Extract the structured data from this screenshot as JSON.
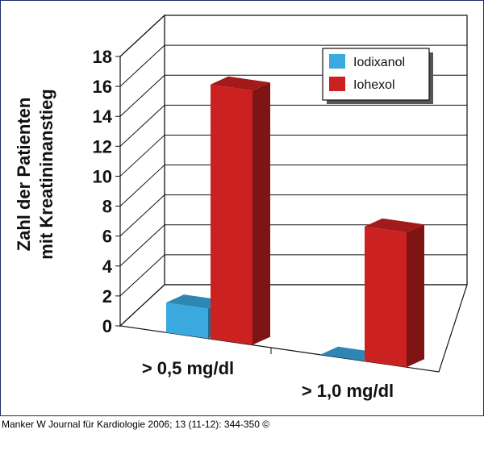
{
  "chart_data": {
    "type": "bar",
    "style": "3d",
    "ylabel_lines": [
      "Zahl der Patienten",
      "mit Kreatininanstieg"
    ],
    "categories": [
      "> 0,5 mg/dl",
      "> 1,0 mg/dl"
    ],
    "series": [
      {
        "name": "Iodixanol",
        "values": [
          2,
          0
        ],
        "color": "#3aa9de"
      },
      {
        "name": "Iohexol",
        "values": [
          17,
          9
        ],
        "color": "#cc2121"
      }
    ],
    "ylim": [
      0,
      18
    ],
    "yticks": [
      0,
      2,
      4,
      6,
      8,
      10,
      12,
      14,
      16,
      18
    ],
    "grid": true,
    "legend": "top-right"
  },
  "citation": "Manker W Journal für Kardiologie 2006; 13 (11-12): 344-350 ©"
}
